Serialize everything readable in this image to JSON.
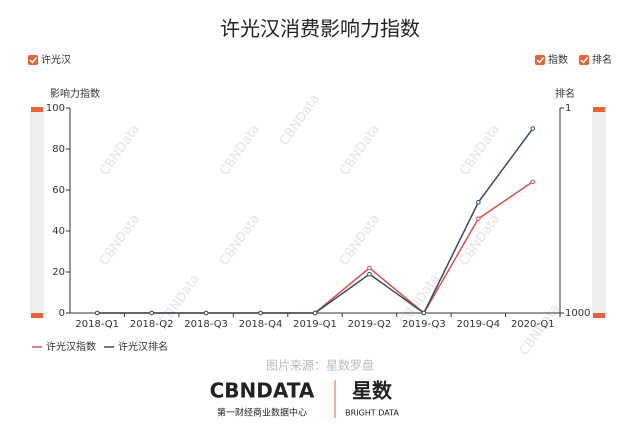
{
  "chart_data": {
    "type": "line",
    "title": "许光汉消费影响力指数",
    "filter": "许光汉",
    "toggles": [
      "指数",
      "排名"
    ],
    "ylabel": "影响力指数",
    "y2label": "排名",
    "watermark": "CBNData",
    "categories": [
      "2018-Q1",
      "2018-Q2",
      "2018-Q3",
      "2018-Q4",
      "2019-Q1",
      "2019-Q2",
      "2019-Q3",
      "2019-Q4",
      "2020-Q1"
    ],
    "series": [
      {
        "name": "许光汉指数",
        "color": "#d9534f",
        "values": [
          0,
          0,
          0,
          0,
          0,
          22,
          0,
          46,
          64
        ]
      },
      {
        "name": "许光汉排名",
        "color": "#3a4a5c",
        "axis": "y2",
        "values": [
          1000,
          1000,
          1000,
          1000,
          1000,
          270,
          1000,
          24,
          2
        ]
      }
    ],
    "ylim": [
      0,
      100
    ],
    "yticks": [
      0,
      20,
      40,
      60,
      80,
      100
    ],
    "y2lim": [
      1,
      1000
    ],
    "y2ticks": [
      1,
      1000
    ],
    "y2log": true,
    "y2reverse": true
  },
  "footer": {
    "caption": "图片来源：星数罗盘",
    "logo": "CBNDATA",
    "logo_subtitle": "第一财经商业数据中心",
    "brand": "星数",
    "brand_subtitle": "BRIGHT DATA"
  }
}
